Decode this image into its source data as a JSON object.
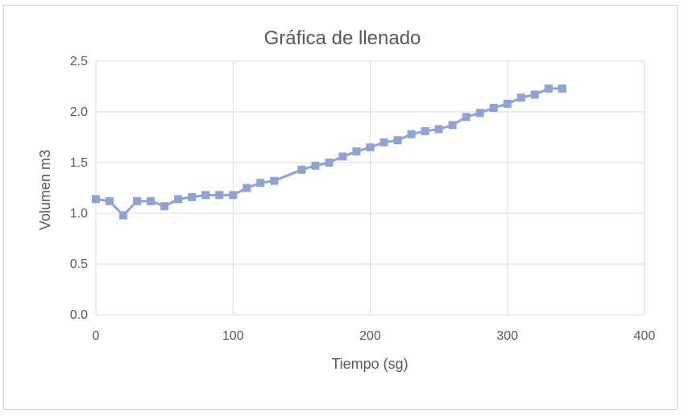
{
  "chart_data": {
    "type": "line",
    "title": "Gráfica de llenado",
    "xlabel": "Tiempo (sg)",
    "ylabel": "Volumen m3",
    "xlim": [
      0,
      400
    ],
    "ylim": [
      0,
      2.5
    ],
    "x_ticks": [
      "0",
      "100",
      "200",
      "300",
      "400"
    ],
    "y_ticks": [
      "0.0",
      "0.5",
      "1.0",
      "1.5",
      "2.0",
      "2.5"
    ],
    "grid": true,
    "legend": false,
    "marker": "square",
    "series_color": "#8FA2D4",
    "series": [
      {
        "x": [
          0,
          10,
          20,
          30,
          40,
          50,
          60,
          70,
          80,
          90,
          100,
          110,
          120,
          130,
          150,
          160,
          170,
          180,
          190,
          200,
          210,
          220,
          230,
          240,
          250,
          260,
          270,
          280,
          290,
          300,
          310,
          320,
          330,
          340
        ],
        "y": [
          1.14,
          1.12,
          0.98,
          1.12,
          1.12,
          1.07,
          1.14,
          1.16,
          1.18,
          1.18,
          1.18,
          1.25,
          1.3,
          1.32,
          1.43,
          1.47,
          1.5,
          1.56,
          1.61,
          1.65,
          1.7,
          1.72,
          1.78,
          1.81,
          1.83,
          1.87,
          1.95,
          1.99,
          2.04,
          2.08,
          2.14,
          2.17,
          2.23,
          2.23
        ]
      }
    ]
  }
}
